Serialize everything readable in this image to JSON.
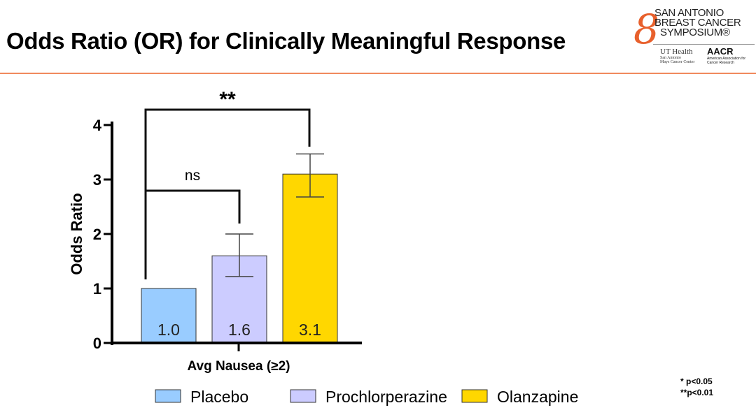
{
  "title": "Odds Ratio (OR) for Clinically Meaningful Response",
  "logo": {
    "line1": "SAN ANTONIO",
    "line2": "BREAST CANCER",
    "line3": "SYMPOSIUM®",
    "ut": "UT Health",
    "ut_sub": "San Antonio",
    "ut_sub2": "Mays Cancer Center",
    "aacr": "AACR",
    "aacr_sub": "American Association for Cancer Research"
  },
  "footnotes": [
    "* p<0.05",
    "**p<0.01"
  ],
  "chart_data": {
    "type": "bar",
    "title": "",
    "xlabel": "Avg Nausea (≥2)",
    "ylabel": "Odds Ratio",
    "ylim": [
      0,
      4
    ],
    "yticks": [
      0,
      1,
      2,
      3,
      4
    ],
    "categories": [
      "Placebo",
      "Prochlorperazine",
      "Olanzapine"
    ],
    "values": [
      1.0,
      1.6,
      3.1
    ],
    "value_labels": [
      "1.0",
      "1.6",
      "3.1"
    ],
    "error_low": [
      null,
      1.22,
      2.68
    ],
    "error_high": [
      null,
      2.0,
      3.47
    ],
    "colors": [
      "#99ccff",
      "#ccccff",
      "#ffd700"
    ],
    "legend_position": "bottom",
    "annotations": [
      {
        "label": "ns",
        "from": "Placebo",
        "to": "Prochlorperazine"
      },
      {
        "label": "**",
        "from": "Placebo",
        "to": "Olanzapine"
      }
    ]
  }
}
